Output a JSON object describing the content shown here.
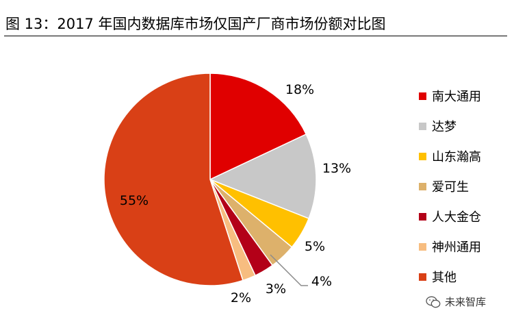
{
  "figure": {
    "title": "图  13：2017 年国内数据库市场仅国产厂商市场份额对比图"
  },
  "chart_data": {
    "type": "pie",
    "title": "",
    "slices": [
      {
        "name": "南大通用",
        "value": 18,
        "label": "18%",
        "color": "#E00000"
      },
      {
        "name": "达梦",
        "value": 13,
        "label": "13%",
        "color": "#C8C8C8"
      },
      {
        "name": "山东瀚高",
        "value": 5,
        "label": "5%",
        "color": "#FFC000"
      },
      {
        "name": "爱可生",
        "value": 4,
        "label": "4%",
        "color": "#DDB16B"
      },
      {
        "name": "人大金仓",
        "value": 3,
        "label": "3%",
        "color": "#B30018"
      },
      {
        "name": "神州通用",
        "value": 2,
        "label": "2%",
        "color": "#F7BD80"
      },
      {
        "name": "其他",
        "value": 55,
        "label": "55%",
        "color": "#D94016"
      }
    ],
    "start_angle_deg": 0,
    "direction": "clockwise",
    "legend_position": "right"
  },
  "watermark": {
    "icon": "wechat-icon",
    "text": "未来智库"
  }
}
